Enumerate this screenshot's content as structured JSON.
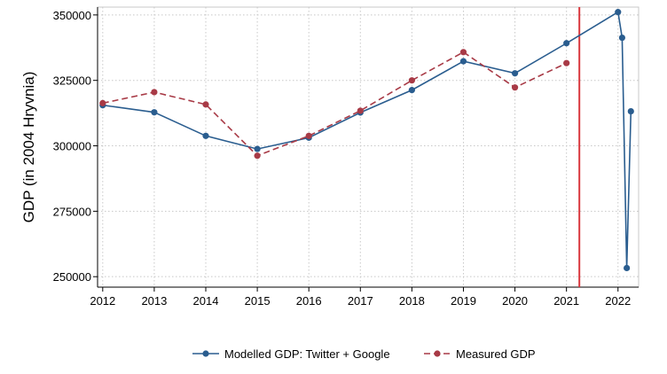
{
  "chart_data": {
    "type": "line",
    "title": "",
    "xlabel": "",
    "ylabel": "GDP (in 2004 Hryvnia)",
    "xlim": [
      2011.9,
      2022.4
    ],
    "ylim": [
      246000,
      353000
    ],
    "x_ticks": [
      2012,
      2013,
      2014,
      2015,
      2016,
      2017,
      2018,
      2019,
      2020,
      2021,
      2022
    ],
    "y_ticks": [
      250000,
      275000,
      300000,
      325000,
      350000
    ],
    "grid": true,
    "legend_position": "bottom",
    "vertical_marker": {
      "x": 2021.25,
      "color": "#d9373d"
    },
    "series": [
      {
        "name": "Modelled GDP: Twitter + Google",
        "color": "#2a5d8f",
        "dash": "solid",
        "points": [
          [
            2012,
            315500
          ],
          [
            2013,
            312800
          ],
          [
            2014,
            303800
          ],
          [
            2015,
            298800
          ],
          [
            2016,
            303100
          ],
          [
            2017,
            312700
          ],
          [
            2018,
            321300
          ],
          [
            2019,
            332300
          ],
          [
            2020,
            327700
          ],
          [
            2021,
            339200
          ],
          [
            2022,
            351100
          ],
          [
            2022.08,
            341300
          ],
          [
            2022.17,
            253300
          ],
          [
            2022.25,
            313200
          ]
        ]
      },
      {
        "name": "Measured GDP",
        "color": "#a83a46",
        "dash": "dashed",
        "points": [
          [
            2012,
            316300
          ],
          [
            2013,
            320500
          ],
          [
            2014,
            315800
          ],
          [
            2015,
            296200
          ],
          [
            2016,
            303800
          ],
          [
            2017,
            313400
          ],
          [
            2018,
            325000
          ],
          [
            2019,
            335800
          ],
          [
            2020,
            322300
          ],
          [
            2021,
            331600
          ]
        ]
      }
    ]
  }
}
